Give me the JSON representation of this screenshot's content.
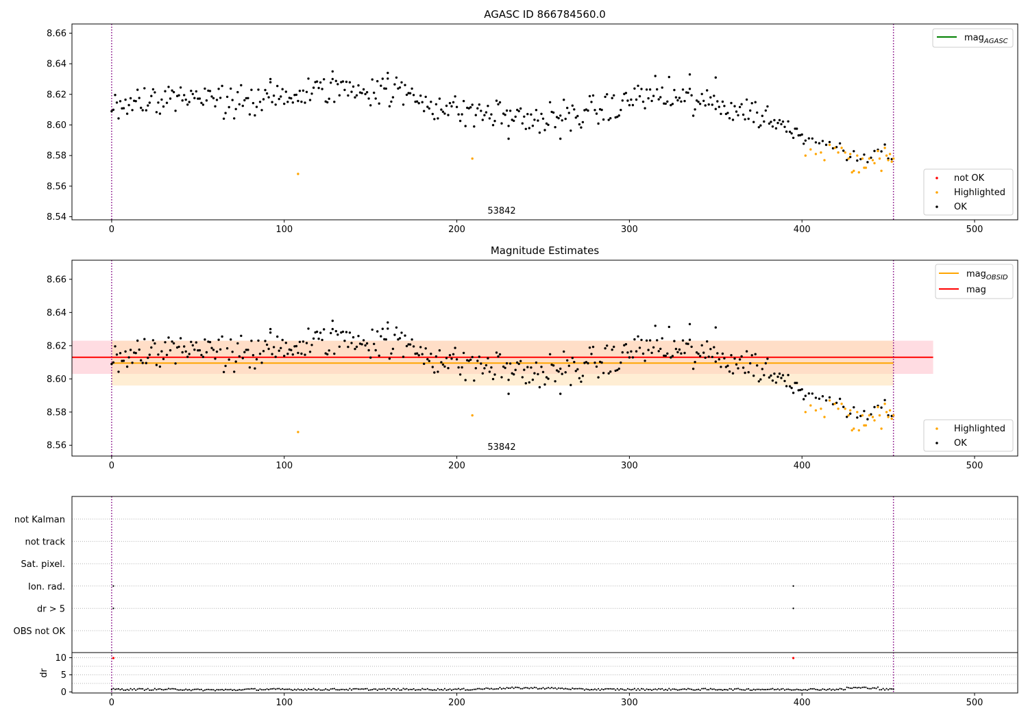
{
  "chart_data": [
    {
      "type": "scatter",
      "title": "AGASC ID 866784560.0",
      "xlabel": "",
      "ylabel": "",
      "xlim": [
        -23,
        525
      ],
      "ylim": [
        8.538,
        8.666
      ],
      "xticks": [
        "0",
        "100",
        "200",
        "300",
        "400",
        "500"
      ],
      "yticks": [
        "8.54",
        "8.56",
        "8.58",
        "8.60",
        "8.62",
        "8.64",
        "8.66"
      ],
      "vlines": [
        0,
        453
      ],
      "annotation": "53842",
      "legend_lines": [
        {
          "label": "mag",
          "subscript": "AGASC",
          "color": "#008000"
        }
      ],
      "legend_points": [
        {
          "label": "not OK",
          "color": "#ff0000"
        },
        {
          "label": "Highlighted",
          "color": "#ffa500"
        },
        {
          "label": "OK",
          "color": "#000000"
        }
      ],
      "series": [
        {
          "name": "OK",
          "color": "#000000",
          "points": "ok_points"
        },
        {
          "name": "Highlighted",
          "color": "#ffa500",
          "points": "highlighted_points"
        }
      ]
    },
    {
      "type": "scatter",
      "title": "Magnitude Estimates",
      "xlabel": "",
      "ylabel": "",
      "xlim": [
        -23,
        525
      ],
      "ylim": [
        8.5535,
        8.6715
      ],
      "xticks": [
        "0",
        "100",
        "200",
        "300",
        "400",
        "500"
      ],
      "yticks": [
        "8.56",
        "8.58",
        "8.60",
        "8.62",
        "8.64",
        "8.66"
      ],
      "vlines": [
        0,
        453
      ],
      "annotation": "53842",
      "bands": [
        {
          "name": "mag",
          "color": "#ff0000",
          "x": [
            -23,
            476
          ],
          "center": 8.613,
          "low": 8.603,
          "high": 8.623
        },
        {
          "name": "mag_OBSID",
          "color": "#ffa500",
          "x": [
            0,
            453
          ],
          "center": 8.6095,
          "low": 8.596,
          "high": 8.623
        }
      ],
      "legend_lines": [
        {
          "label": "mag",
          "subscript": "OBSID",
          "color": "#ffa500"
        },
        {
          "label": "mag",
          "subscript": "",
          "color": "#ff0000"
        }
      ],
      "legend_points": [
        {
          "label": "Highlighted",
          "color": "#ffa500"
        },
        {
          "label": "OK",
          "color": "#000000"
        }
      ],
      "series": [
        {
          "name": "OK",
          "color": "#000000",
          "points": "ok_points"
        },
        {
          "name": "Highlighted",
          "color": "#ffa500",
          "points": "highlighted_points"
        }
      ]
    },
    {
      "type": "scatter",
      "title": "",
      "xlim": [
        -23,
        525
      ],
      "xticks": [
        "0",
        "100",
        "200",
        "300",
        "400",
        "500"
      ],
      "vlines": [
        0,
        453
      ],
      "flag_rows": [
        "not Kalman",
        "not track",
        "Sat. pixel.",
        "Ion. rad.",
        "dr > 5",
        "OBS not OK"
      ],
      "flag_points": [
        {
          "row": "Ion. rad.",
          "x": 1
        },
        {
          "row": "Ion. rad.",
          "x": 395
        },
        {
          "row": "dr > 5",
          "x": 1
        },
        {
          "row": "dr > 5",
          "x": 395
        }
      ]
    },
    {
      "type": "scatter",
      "title": "",
      "ylabel": "dr",
      "xlim": [
        -23,
        525
      ],
      "ylim": [
        -0.3,
        11.5
      ],
      "xticks": [
        "0",
        "100",
        "200",
        "300",
        "400",
        "500"
      ],
      "yticks": [
        "0",
        "5",
        "10"
      ],
      "vlines": [
        0,
        453
      ],
      "outliers": [
        {
          "x": 1,
          "y": 9.9,
          "color": "#ff0000"
        },
        {
          "x": 395,
          "y": 9.9,
          "color": "#ff0000"
        }
      ]
    }
  ],
  "mag_trend": [
    [
      0,
      8.612
    ],
    [
      10,
      8.615
    ],
    [
      25,
      8.617
    ],
    [
      40,
      8.619
    ],
    [
      60,
      8.616
    ],
    [
      75,
      8.614
    ],
    [
      95,
      8.618
    ],
    [
      115,
      8.621
    ],
    [
      130,
      8.624
    ],
    [
      150,
      8.624
    ],
    [
      170,
      8.621
    ],
    [
      185,
      8.614
    ],
    [
      200,
      8.609
    ],
    [
      215,
      8.608
    ],
    [
      230,
      8.606
    ],
    [
      250,
      8.603
    ],
    [
      262,
      8.605
    ],
    [
      280,
      8.609
    ],
    [
      295,
      8.612
    ],
    [
      305,
      8.62
    ],
    [
      320,
      8.619
    ],
    [
      340,
      8.615
    ],
    [
      360,
      8.611
    ],
    [
      372,
      8.608
    ],
    [
      380,
      8.604
    ],
    [
      390,
      8.599
    ],
    [
      400,
      8.594
    ],
    [
      410,
      8.59
    ],
    [
      420,
      8.585
    ],
    [
      430,
      8.582
    ],
    [
      440,
      8.581
    ],
    [
      453,
      8.58
    ]
  ],
  "highlighted_points": [
    [
      108,
      8.568
    ],
    [
      209,
      8.578
    ],
    [
      402,
      8.58
    ],
    [
      405,
      8.584
    ],
    [
      408,
      8.581
    ],
    [
      411,
      8.582
    ],
    [
      413,
      8.577
    ],
    [
      416,
      8.587
    ],
    [
      419,
      8.585
    ],
    [
      421,
      8.582
    ],
    [
      423,
      8.585
    ],
    [
      425,
      8.582
    ],
    [
      427,
      8.578
    ],
    [
      428,
      8.581
    ],
    [
      429,
      8.569
    ],
    [
      430,
      8.57
    ],
    [
      432,
      8.58
    ],
    [
      433,
      8.569
    ],
    [
      435,
      8.578
    ],
    [
      436,
      8.572
    ],
    [
      437,
      8.572
    ],
    [
      439,
      8.578
    ],
    [
      441,
      8.577
    ],
    [
      442,
      8.575
    ],
    [
      444,
      8.583
    ],
    [
      445,
      8.578
    ],
    [
      446,
      8.57
    ],
    [
      448,
      8.585
    ],
    [
      449,
      8.58
    ],
    [
      450,
      8.577
    ],
    [
      451,
      8.581
    ],
    [
      452,
      8.576
    ],
    [
      453,
      8.578
    ]
  ]
}
